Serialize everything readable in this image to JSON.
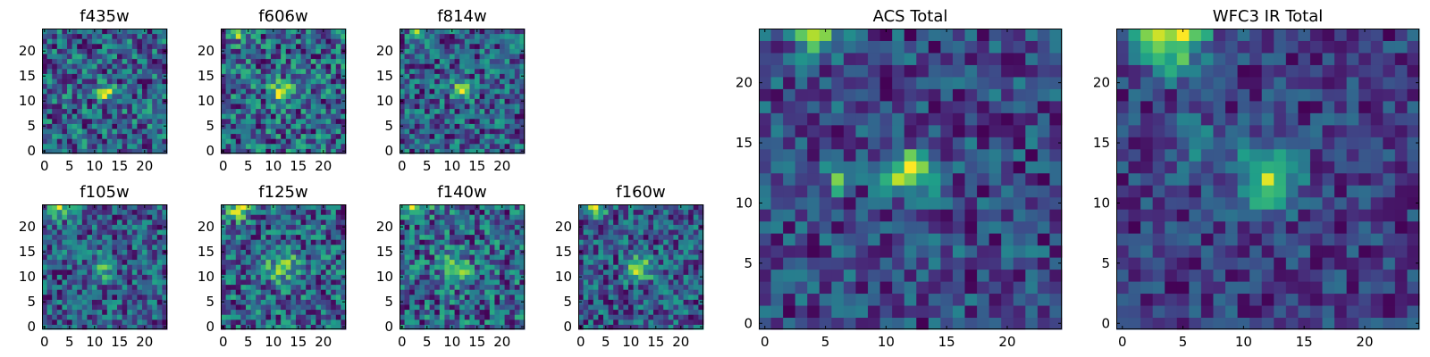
{
  "figure": {
    "panel_count": 9
  },
  "chart_data": [
    {
      "type": "heatmap",
      "title": "f435w",
      "grid": 25,
      "xticks": [
        "0",
        "5",
        "10",
        "15",
        "20"
      ],
      "yticks": [
        "0",
        "5",
        "10",
        "15",
        "20"
      ],
      "xlim": [
        -0.5,
        24.5
      ],
      "ylim": [
        -0.5,
        24.5
      ],
      "colormap": "viridis",
      "blobs": [
        {
          "x": 12,
          "y": 12,
          "amp": 0.55,
          "sigma": 1.3
        },
        {
          "x": 3,
          "y": 12,
          "amp": 0.25,
          "sigma": 0.8
        }
      ],
      "noise": 0.35,
      "seed": 11
    },
    {
      "type": "heatmap",
      "title": "f606w",
      "grid": 25,
      "xticks": [
        "0",
        "5",
        "10",
        "15",
        "20"
      ],
      "yticks": [
        "0",
        "5",
        "10",
        "15",
        "20"
      ],
      "xlim": [
        -0.5,
        24.5
      ],
      "ylim": [
        -0.5,
        24.5
      ],
      "colormap": "viridis",
      "blobs": [
        {
          "x": 12,
          "y": 12,
          "amp": 0.6,
          "sigma": 1.4
        },
        {
          "x": 3,
          "y": 24,
          "amp": 0.4,
          "sigma": 1.2
        }
      ],
      "noise": 0.3,
      "seed": 23
    },
    {
      "type": "heatmap",
      "title": "f814w",
      "grid": 25,
      "xticks": [
        "0",
        "5",
        "10",
        "15",
        "20"
      ],
      "yticks": [
        "0",
        "5",
        "10",
        "15",
        "20"
      ],
      "xlim": [
        -0.5,
        24.5
      ],
      "ylim": [
        -0.5,
        24.5
      ],
      "colormap": "viridis",
      "blobs": [
        {
          "x": 12,
          "y": 12,
          "amp": 0.55,
          "sigma": 1.3
        },
        {
          "x": 3,
          "y": 24,
          "amp": 0.45,
          "sigma": 1.2
        }
      ],
      "noise": 0.32,
      "seed": 37
    },
    {
      "type": "heatmap",
      "title": "f105w",
      "grid": 25,
      "xticks": [
        "0",
        "5",
        "10",
        "15",
        "20"
      ],
      "yticks": [
        "0",
        "5",
        "10",
        "15",
        "20"
      ],
      "xlim": [
        -0.5,
        24.5
      ],
      "ylim": [
        -0.5,
        24.5
      ],
      "colormap": "viridis",
      "blobs": [
        {
          "x": 12,
          "y": 12,
          "amp": 0.45,
          "sigma": 1.5
        },
        {
          "x": 3,
          "y": 24,
          "amp": 0.5,
          "sigma": 1.5
        }
      ],
      "noise": 0.3,
      "seed": 41
    },
    {
      "type": "heatmap",
      "title": "f125w",
      "grid": 25,
      "xticks": [
        "0",
        "5",
        "10",
        "15",
        "20"
      ],
      "yticks": [
        "0",
        "5",
        "10",
        "15",
        "20"
      ],
      "xlim": [
        -0.5,
        24.5
      ],
      "ylim": [
        -0.5,
        24.5
      ],
      "colormap": "viridis",
      "blobs": [
        {
          "x": 12,
          "y": 12,
          "amp": 0.3,
          "sigma": 2.5
        },
        {
          "x": 3,
          "y": 24,
          "amp": 0.5,
          "sigma": 1.6
        }
      ],
      "noise": 0.3,
      "seed": 53
    },
    {
      "type": "heatmap",
      "title": "f140w",
      "grid": 25,
      "xticks": [
        "0",
        "5",
        "10",
        "15",
        "20"
      ],
      "yticks": [
        "0",
        "5",
        "10",
        "15",
        "20"
      ],
      "xlim": [
        -0.5,
        24.5
      ],
      "ylim": [
        -0.5,
        24.5
      ],
      "colormap": "viridis",
      "blobs": [
        {
          "x": 11,
          "y": 12,
          "amp": 0.35,
          "sigma": 2.0
        },
        {
          "x": 3,
          "y": 24,
          "amp": 0.5,
          "sigma": 1.6
        }
      ],
      "noise": 0.32,
      "seed": 67
    },
    {
      "type": "heatmap",
      "title": "f160w",
      "grid": 25,
      "xticks": [
        "0",
        "5",
        "10",
        "15",
        "20"
      ],
      "yticks": [
        "0",
        "5",
        "10",
        "15",
        "20"
      ],
      "xlim": [
        -0.5,
        24.5
      ],
      "ylim": [
        -0.5,
        24.5
      ],
      "colormap": "viridis",
      "blobs": [
        {
          "x": 12,
          "y": 12,
          "amp": 0.55,
          "sigma": 1.8
        },
        {
          "x": 3,
          "y": 24,
          "amp": 0.45,
          "sigma": 1.4
        }
      ],
      "noise": 0.28,
      "seed": 79
    },
    {
      "type": "heatmap",
      "title": "ACS Total",
      "grid": 25,
      "xticks": [
        "0",
        "5",
        "10",
        "15",
        "20"
      ],
      "yticks": [
        "0",
        "5",
        "10",
        "15",
        "20"
      ],
      "xlim": [
        -0.5,
        24.5
      ],
      "ylim": [
        -0.5,
        24.5
      ],
      "colormap": "viridis",
      "blobs": [
        {
          "x": 12,
          "y": 12.5,
          "amp": 0.7,
          "sigma": 1.3
        },
        {
          "x": 6,
          "y": 12,
          "amp": 0.35,
          "sigma": 0.9
        },
        {
          "x": 4,
          "y": 24,
          "amp": 0.5,
          "sigma": 1.3
        }
      ],
      "noise": 0.22,
      "seed": 97
    },
    {
      "type": "heatmap",
      "title": "WFC3 IR Total",
      "grid": 25,
      "xticks": [
        "0",
        "5",
        "10",
        "15",
        "20"
      ],
      "yticks": [
        "0",
        "5",
        "10",
        "15",
        "20"
      ],
      "xlim": [
        -0.5,
        24.5
      ],
      "ylim": [
        -0.5,
        24.5
      ],
      "colormap": "viridis",
      "blobs": [
        {
          "x": 12,
          "y": 12,
          "amp": 0.6,
          "sigma": 1.8
        },
        {
          "x": 4,
          "y": 24,
          "amp": 0.75,
          "sigma": 2.0
        },
        {
          "x": 6,
          "y": 15,
          "amp": 0.15,
          "sigma": 2.0
        }
      ],
      "noise": 0.18,
      "seed": 113
    }
  ]
}
